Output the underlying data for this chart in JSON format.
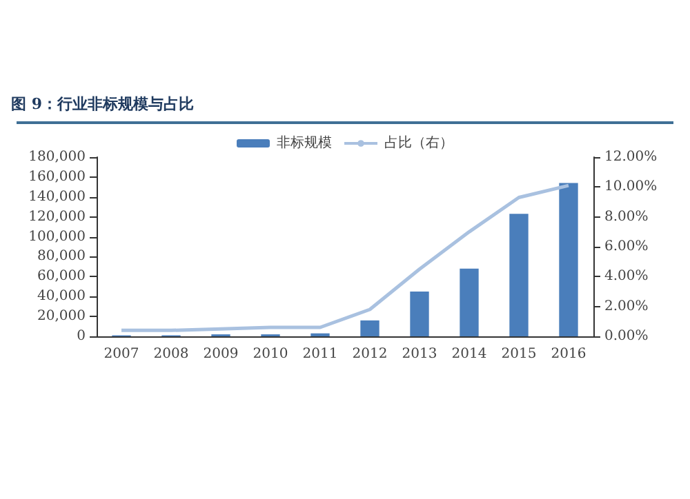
{
  "chart_data": {
    "type": "bar",
    "title": "图 9：行业非标规模与占比",
    "categories": [
      "2007",
      "2008",
      "2009",
      "2010",
      "2011",
      "2012",
      "2013",
      "2014",
      "2015",
      "2016"
    ],
    "series": [
      {
        "name": "非标规模",
        "color": "#4a7ebb",
        "values": [
          1000,
          1000,
          2000,
          2000,
          3000,
          16000,
          45000,
          68000,
          123000,
          154000
        ]
      },
      {
        "name": "占比（右）",
        "type": "line",
        "axis": "y2",
        "color": "#a9c1e0",
        "values": [
          0.4,
          0.4,
          0.5,
          0.6,
          0.6,
          1.8,
          4.5,
          7.0,
          9.3,
          10.1
        ]
      }
    ],
    "ylim": [
      0,
      180000
    ],
    "yticks": [
      0,
      {
        "value": 20000,
        "label": "20,000"
      },
      {
        "value": 40000,
        "label": "40,000"
      },
      {
        "value": 60000,
        "label": "60,000"
      },
      {
        "value": 80000,
        "label": "80,000"
      },
      {
        "value": 100000,
        "label": "100,000"
      },
      {
        "value": 120000,
        "label": "120,000"
      },
      {
        "value": 140000,
        "label": "140,000"
      },
      {
        "value": 160000,
        "label": "160,000"
      },
      {
        "value": 180000,
        "label": "180,000"
      }
    ],
    "y2lim": [
      0,
      12
    ],
    "y2ticks": [
      {
        "value": 0,
        "label": "0.00%"
      },
      {
        "value": 2,
        "label": "2.00%"
      },
      {
        "value": 4,
        "label": "4.00%"
      },
      {
        "value": 6,
        "label": "6.00%"
      },
      {
        "value": 8,
        "label": "8.00%"
      },
      {
        "value": 10,
        "label": "10.00%"
      },
      {
        "value": 12,
        "label": "12.00%"
      }
    ],
    "legend": "top",
    "marker": "none"
  }
}
